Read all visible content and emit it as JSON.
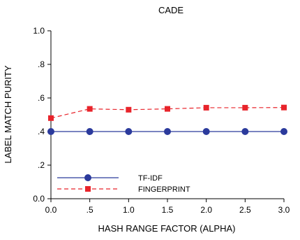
{
  "chart_data": {
    "type": "line",
    "title": "CADE",
    "xlabel": "HASH RANGE FACTOR (ALPHA)",
    "ylabel": "LABEL MATCH PURITY",
    "x": [
      0.0,
      0.5,
      1.0,
      1.5,
      2.0,
      2.5,
      3.0
    ],
    "xlim": [
      0.0,
      3.0
    ],
    "ylim": [
      0.0,
      1.0
    ],
    "x_tick_labels": [
      "0.0",
      ".5",
      "1.0",
      "1.5",
      "2.0",
      "2.5",
      "3.0"
    ],
    "y_ticks": [
      0.0,
      0.2,
      0.4,
      0.6,
      0.8,
      1.0
    ],
    "y_tick_labels": [
      "0.0",
      ".2",
      ".4",
      ".6",
      ".8",
      "1.0"
    ],
    "grid": false,
    "legend_position": "bottom-left",
    "series": [
      {
        "name": "TF-IDF",
        "values": [
          0.4,
          0.4,
          0.4,
          0.4,
          0.4,
          0.4,
          0.4
        ],
        "color": "#2b3a9c",
        "line_style": "solid",
        "marker": "circle"
      },
      {
        "name": "FINGERPRINT",
        "values": [
          0.48,
          0.535,
          0.53,
          0.535,
          0.542,
          0.542,
          0.543
        ],
        "color": "#e8242b",
        "line_style": "dashed",
        "marker": "square"
      }
    ]
  }
}
